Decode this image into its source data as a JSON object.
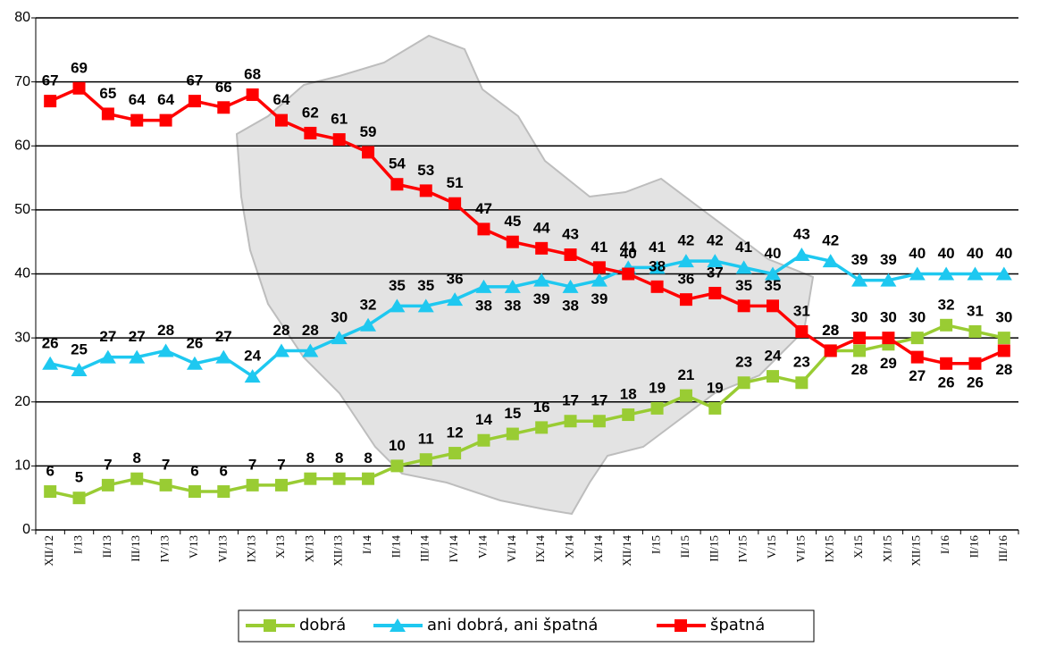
{
  "chart_data": {
    "type": "line",
    "categories": [
      "XII/12",
      "I/13",
      "II/13",
      "III/13",
      "IV/13",
      "V/13",
      "VI/13",
      "IX/13",
      "X/13",
      "XI/13",
      "XII/13",
      "I/14",
      "II/14",
      "III/14",
      "IV/14",
      "V/14",
      "VI/14",
      "IX/14",
      "X/14",
      "XI/14",
      "XII/14",
      "I/15",
      "II/15",
      "III/15",
      "IV/15",
      "V/15",
      "VI/15",
      "IX/15",
      "X/15",
      "XI/15",
      "XII/15",
      "I/16",
      "II/16",
      "III/16"
    ],
    "series": [
      {
        "name": "dobrá",
        "color": "#99cc33",
        "marker": "square",
        "values": [
          6,
          5,
          7,
          8,
          7,
          6,
          6,
          7,
          7,
          8,
          8,
          8,
          10,
          11,
          12,
          14,
          15,
          16,
          17,
          17,
          18,
          19,
          21,
          19,
          23,
          24,
          23,
          28,
          28,
          29,
          30,
          32,
          31,
          30
        ]
      },
      {
        "name": "ani dobrá, ani špatná",
        "color": "#1ec8f0",
        "marker": "triangle",
        "values": [
          26,
          25,
          27,
          27,
          28,
          26,
          27,
          24,
          28,
          28,
          30,
          32,
          35,
          35,
          36,
          38,
          38,
          39,
          38,
          39,
          41,
          41,
          42,
          42,
          41,
          40,
          43,
          42,
          39,
          39,
          40,
          40,
          40,
          40
        ]
      },
      {
        "name": "špatná",
        "color": "#ff0000",
        "marker": "square",
        "values": [
          67,
          69,
          65,
          64,
          64,
          67,
          66,
          68,
          64,
          62,
          61,
          59,
          54,
          53,
          51,
          47,
          45,
          44,
          43,
          41,
          40,
          38,
          36,
          37,
          35,
          35,
          31,
          28,
          30,
          30,
          27,
          26,
          26,
          28
        ]
      }
    ],
    "ylim": [
      0,
      80
    ],
    "yticks": [
      0,
      10,
      20,
      30,
      40,
      50,
      60,
      70,
      80
    ],
    "grid": true,
    "legend": "bottom"
  }
}
